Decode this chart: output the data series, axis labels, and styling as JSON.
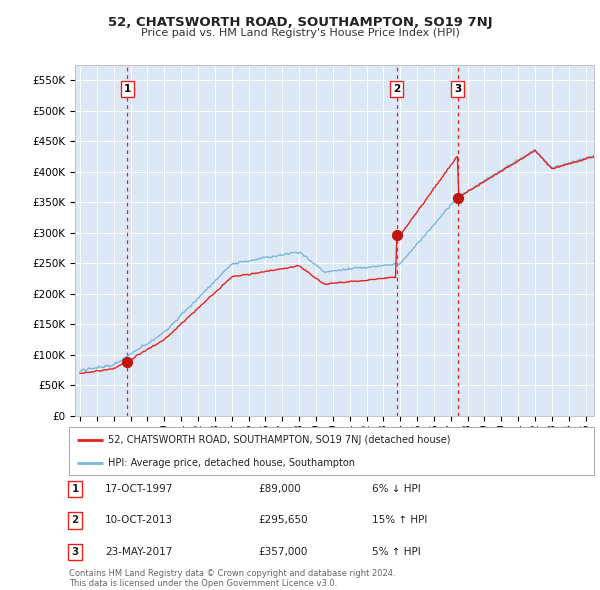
{
  "title": "52, CHATSWORTH ROAD, SOUTHAMPTON, SO19 7NJ",
  "subtitle": "Price paid vs. HM Land Registry's House Price Index (HPI)",
  "background_color": "#dce8f5",
  "ylim": [
    0,
    575000
  ],
  "yticks": [
    0,
    50000,
    100000,
    150000,
    200000,
    250000,
    300000,
    350000,
    400000,
    450000,
    500000,
    550000
  ],
  "ytick_labels": [
    "£0",
    "£50K",
    "£100K",
    "£150K",
    "£200K",
    "£250K",
    "£300K",
    "£350K",
    "£400K",
    "£450K",
    "£500K",
    "£550K"
  ],
  "sale_prices": [
    89000,
    295650,
    357000
  ],
  "sale_labels": [
    "1",
    "2",
    "3"
  ],
  "sale_year_decimals": [
    1997.8,
    2013.78,
    2017.4
  ],
  "sale_info": [
    {
      "label": "1",
      "date": "17-OCT-1997",
      "price": "£89,000",
      "vs_hpi": "6% ↓ HPI"
    },
    {
      "label": "2",
      "date": "10-OCT-2013",
      "price": "£295,650",
      "vs_hpi": "15% ↑ HPI"
    },
    {
      "label": "3",
      "date": "23-MAY-2017",
      "price": "£357,000",
      "vs_hpi": "5% ↑ HPI"
    }
  ],
  "hpi_line_color": "#7ab8d9",
  "sale_line_color": "#e8211d",
  "sale_dot_color": "#c0150f",
  "vline_color": "#e8211d",
  "xtick_start": 1995,
  "xtick_end": 2025,
  "legend_label_red": "52, CHATSWORTH ROAD, SOUTHAMPTON, SO19 7NJ (detached house)",
  "legend_label_blue": "HPI: Average price, detached house, Southampton",
  "footer_text": "Contains HM Land Registry data © Crown copyright and database right 2024.\nThis data is licensed under the Open Government Licence v3.0."
}
